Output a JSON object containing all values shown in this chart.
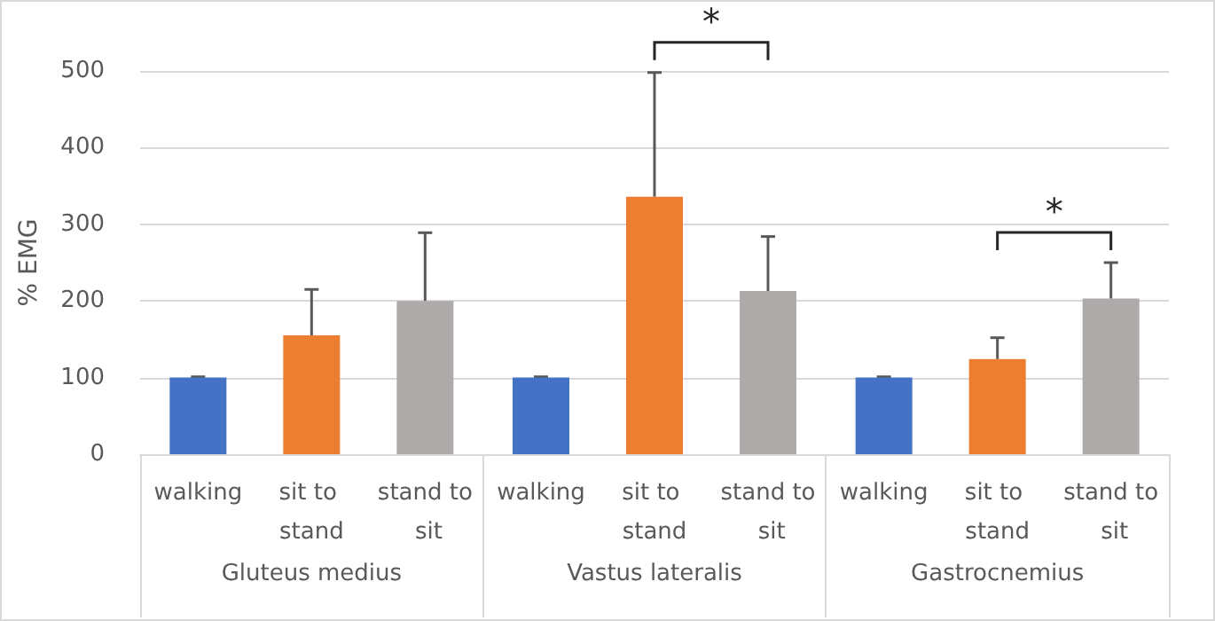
{
  "chart_data": {
    "type": "bar",
    "ylabel": "% EMG",
    "categories": [
      "Gluteus medius",
      "Vastus lateralis",
      "Gastrocnemius"
    ],
    "series": [
      {
        "name": "walking",
        "color": "#4472c4",
        "values": [
          100,
          100,
          100
        ],
        "errors": [
          [
            100,
            101
          ],
          [
            100,
            101
          ],
          [
            100,
            101
          ]
        ]
      },
      {
        "name": "sit to stand",
        "color": "#ed7d31",
        "values": [
          155,
          336,
          124
        ],
        "errors": [
          [
            155,
            215
          ],
          [
            336,
            498
          ],
          [
            124,
            152
          ]
        ]
      },
      {
        "name": "stand to sit",
        "color": "#aeaaaa",
        "values": [
          200,
          213,
          203
        ],
        "errors": [
          [
            200,
            289
          ],
          [
            213,
            284
          ],
          [
            203,
            250
          ]
        ]
      }
    ],
    "ylim": [
      0,
      500
    ],
    "yticks": [
      0,
      100,
      200,
      300,
      400,
      500
    ],
    "grid": "y",
    "legend": false,
    "annotations": [
      "*",
      "*"
    ]
  }
}
